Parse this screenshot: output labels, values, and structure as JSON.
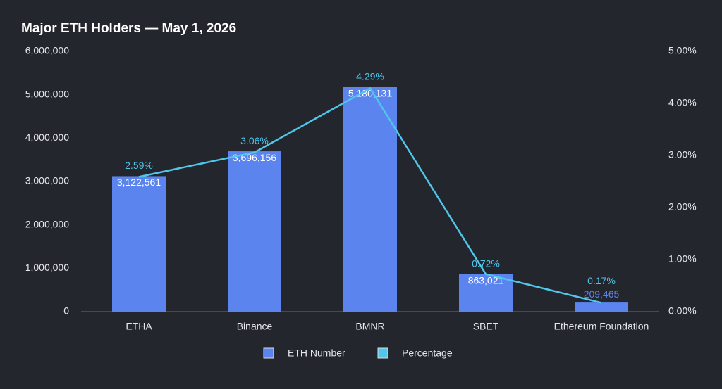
{
  "chart_data": {
    "type": "bar_line",
    "title": "Major ETH Holders — May 1, 2026",
    "categories": [
      "ETHA",
      "Binance",
      "BMNR",
      "SBET",
      "Ethereum Foundation"
    ],
    "series": [
      {
        "name": "ETH Number",
        "color": "#5b84ee",
        "values": [
          3122561,
          3696156,
          5180131,
          863021,
          209465
        ],
        "value_labels": [
          "3,122,561",
          "3,696,156",
          "5,180,131",
          "863,021",
          "209,465"
        ]
      },
      {
        "name": "Percentage",
        "color": "#4fc6ea",
        "axis": "y2",
        "values": [
          2.59,
          3.06,
          4.29,
          0.72,
          0.17
        ],
        "value_labels": [
          "2.59%",
          "3.06%",
          "4.29%",
          "0.72%",
          "0.17%"
        ]
      }
    ],
    "ylim": [
      0,
      6000000
    ],
    "yticks": [
      0,
      {
        "value": 1000000,
        "label": "1,000,000"
      },
      {
        "value": 2000000,
        "label": "2,000,000"
      },
      {
        "value": 3000000,
        "label": "3,000,000"
      },
      {
        "value": 4000000,
        "label": "4,000,000"
      },
      {
        "value": 5000000,
        "label": "5,000,000"
      },
      {
        "value": 6000000,
        "label": "6,000,000"
      }
    ],
    "y2lim": [
      0,
      5
    ],
    "y2ticks": [
      {
        "value": 0,
        "label": "0.00%"
      },
      {
        "value": 1,
        "label": "1.00%"
      },
      {
        "value": 2,
        "label": "2.00%"
      },
      {
        "value": 3,
        "label": "3.00%"
      },
      {
        "value": 4,
        "label": "4.00%"
      },
      {
        "value": 5,
        "label": "5.00%"
      }
    ],
    "legend": "bottom"
  }
}
